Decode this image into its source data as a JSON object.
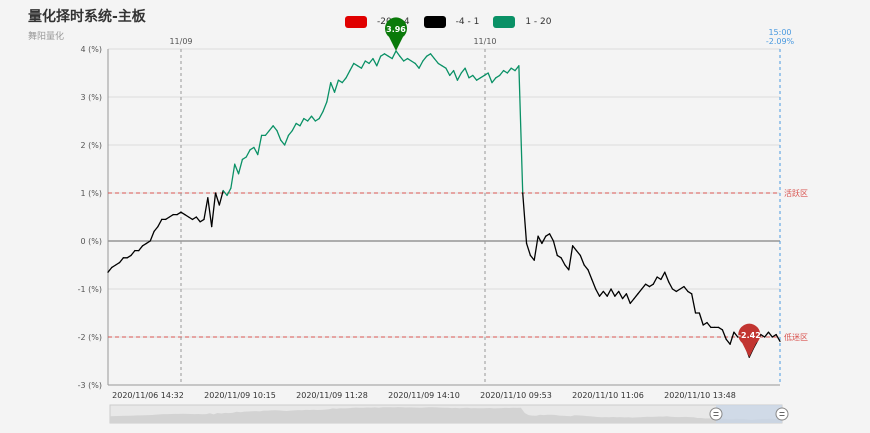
{
  "title": "量化择时系统-主板",
  "subtitle": "舞阳量化",
  "legend": [
    {
      "label": "-20 - -4",
      "color": "#e00000"
    },
    {
      "label": "-4 - 1",
      "color": "#000000"
    },
    {
      "label": "1 - 20",
      "color": "#0a9166"
    }
  ],
  "chart_data": {
    "type": "line",
    "y_unit": "(%)",
    "ylim": [
      -3,
      4
    ],
    "yticks": [
      4,
      3,
      2,
      1,
      0,
      -1,
      -2,
      -3
    ],
    "ytick_labels": [
      "4 (%)",
      "3 (%)",
      "2 (%)",
      "1 (%)",
      "0 (%)",
      "-1 (%)",
      "-2 (%)",
      "-3 (%)"
    ],
    "xtick_labels": [
      "2020/11/06 14:32",
      "2020/11/09 10:15",
      "2020/11/09 11:28",
      "2020/11/09 14:10",
      "2020/11/10 09:53",
      "2020/11/10 11:06",
      "2020/11/10 13:48"
    ],
    "day_markers": [
      "11/09",
      "11/10"
    ],
    "end_marker": {
      "time": "15:00",
      "value": "-2.09%"
    },
    "reference_lines": [
      {
        "value": 1,
        "label": "活跃区",
        "color": "#d9534f"
      },
      {
        "value": -2,
        "label": "低迷区",
        "color": "#d9534f"
      }
    ],
    "max_point": {
      "label": "3.96",
      "value": 3.96,
      "color": "#0a7a0a"
    },
    "min_point": {
      "label": "-2.42",
      "value": -2.42,
      "color": "#c23531"
    },
    "series": [
      {
        "values": [
          -0.65,
          -0.55,
          -0.5,
          -0.45,
          -0.35,
          -0.35,
          -0.3,
          -0.2,
          -0.2,
          -0.1,
          -0.05,
          0,
          0.2,
          0.3,
          0.45,
          0.45,
          0.5,
          0.55,
          0.55,
          0.6,
          0.55,
          0.5,
          0.45,
          0.5,
          0.4,
          0.45,
          0.9,
          0.3,
          1.0,
          0.75,
          1.05,
          0.95,
          1.1,
          1.6,
          1.4,
          1.7,
          1.75,
          1.9,
          1.95,
          1.8,
          2.2,
          2.2,
          2.3,
          2.4,
          2.3,
          2.1,
          2.0,
          2.2,
          2.3,
          2.45,
          2.4,
          2.55,
          2.5,
          2.6,
          2.5,
          2.55,
          2.7,
          2.9,
          3.3,
          3.1,
          3.35,
          3.3,
          3.4,
          3.55,
          3.7,
          3.65,
          3.6,
          3.75,
          3.7,
          3.8,
          3.65,
          3.85,
          3.9,
          3.85,
          3.8,
          3.96,
          3.85,
          3.75,
          3.8,
          3.75,
          3.7,
          3.6,
          3.75,
          3.85,
          3.9,
          3.8,
          3.7,
          3.65,
          3.6,
          3.45,
          3.55,
          3.35,
          3.5,
          3.6,
          3.4,
          3.45,
          3.35,
          3.4,
          3.45,
          3.5,
          3.3,
          3.4,
          3.45,
          3.55,
          3.5,
          3.6,
          3.55,
          3.65,
          1.0,
          -0.05,
          -0.3,
          -0.4,
          0.1,
          -0.05,
          0.1,
          0.15,
          0.0,
          -0.3,
          -0.35,
          -0.5,
          -0.6,
          -0.1,
          -0.2,
          -0.3,
          -0.5,
          -0.6,
          -0.8,
          -1.0,
          -1.15,
          -1.05,
          -1.15,
          -1.0,
          -1.15,
          -1.05,
          -1.2,
          -1.1,
          -1.3,
          -1.2,
          -1.1,
          -1.0,
          -0.9,
          -0.95,
          -0.9,
          -0.75,
          -0.8,
          -0.65,
          -0.85,
          -1.0,
          -1.05,
          -1.0,
          -0.95,
          -1.05,
          -1.1,
          -1.5,
          -1.5,
          -1.75,
          -1.7,
          -1.8,
          -1.8,
          -1.8,
          -1.85,
          -2.05,
          -2.15,
          -1.9,
          -2.0,
          -1.95,
          -2.2,
          -2.42,
          -2.25,
          -2.1,
          -1.95,
          -2.0,
          -1.9,
          -2.0,
          -1.95,
          -2.09
        ]
      }
    ]
  }
}
